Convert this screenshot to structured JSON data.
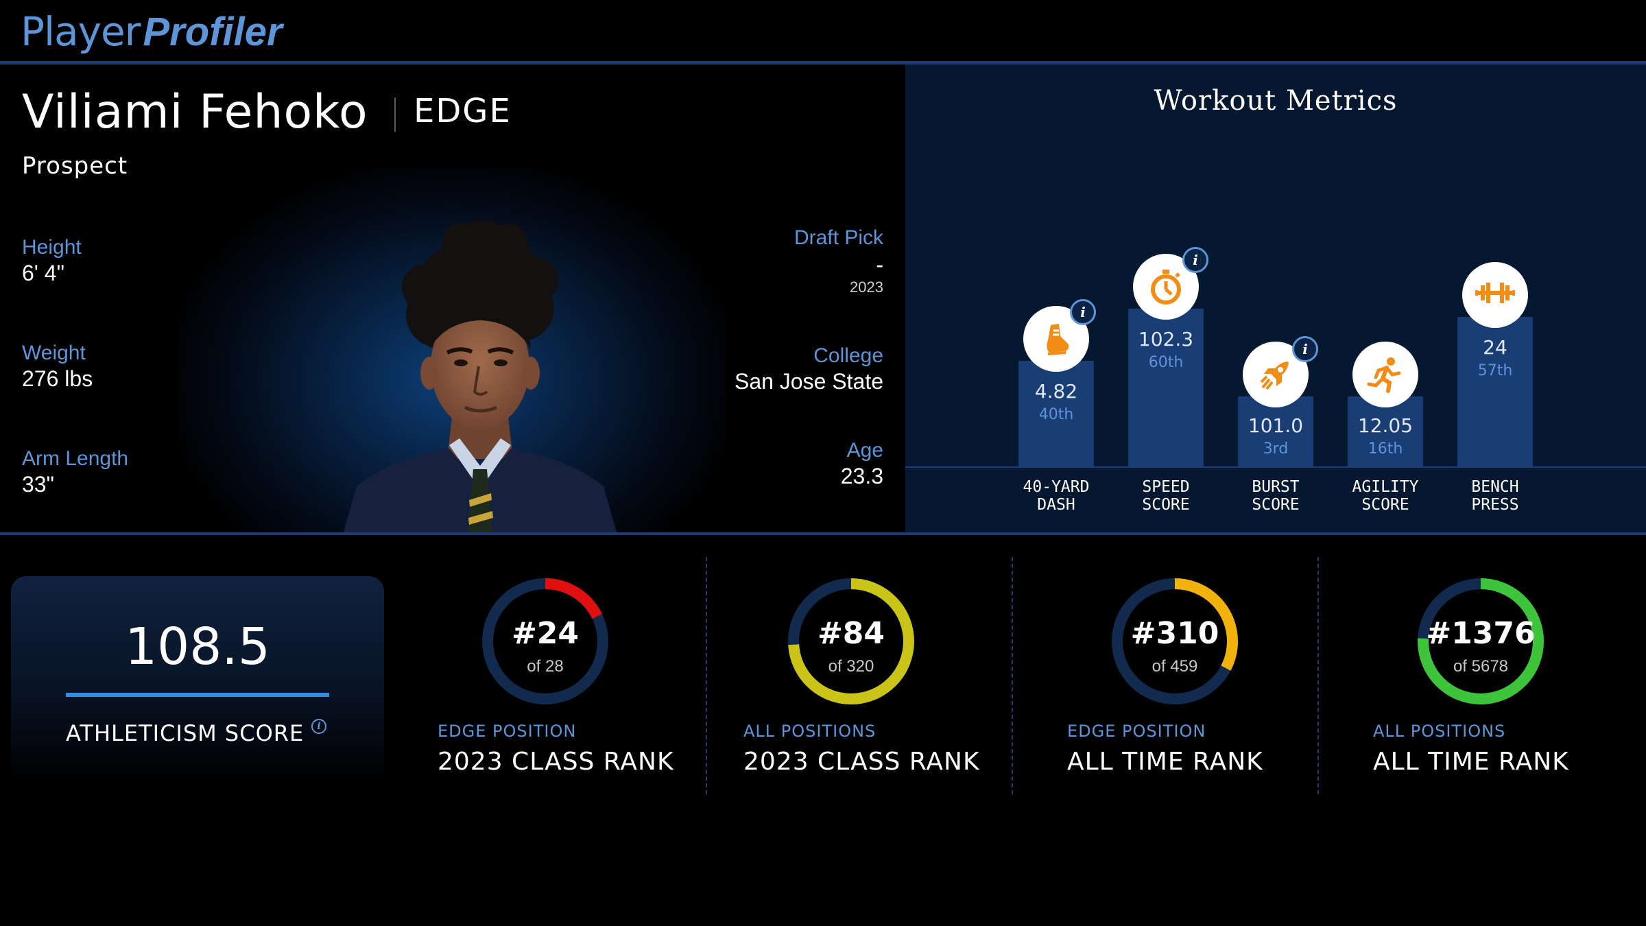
{
  "header": {
    "logo_part1": "Player",
    "logo_part2": "Profiler"
  },
  "player": {
    "name": "Viliami Fehoko",
    "position": "EDGE",
    "status": "Prospect",
    "left_stats": [
      {
        "label": "Height",
        "value": "6' 4\""
      },
      {
        "label": "Weight",
        "value": "276 lbs"
      },
      {
        "label": "Arm Length",
        "value": "33\""
      }
    ],
    "draft": {
      "label": "Draft Pick",
      "value": "-",
      "year": "2023"
    },
    "college": {
      "label": "College",
      "value": "San Jose State"
    },
    "age": {
      "label": "Age",
      "value": "23.3"
    }
  },
  "workout": {
    "title": "Workout Metrics",
    "metrics": [
      {
        "label_line1": "40-YARD",
        "label_line2": "DASH",
        "value": "4.82",
        "percentile": "40th",
        "percentile_num": 40,
        "icon": "shoe-icon",
        "has_info": true
      },
      {
        "label_line1": "SPEED",
        "label_line2": "SCORE",
        "value": "102.3",
        "percentile": "60th",
        "percentile_num": 60,
        "icon": "stopwatch-icon",
        "has_info": true
      },
      {
        "label_line1": "BURST",
        "label_line2": "SCORE",
        "value": "101.0",
        "percentile": "3rd",
        "percentile_num": 3,
        "icon": "rocket-icon",
        "has_info": true
      },
      {
        "label_line1": "AGILITY",
        "label_line2": "SCORE",
        "value": "12.05",
        "percentile": "16th",
        "percentile_num": 16,
        "icon": "runner-icon",
        "has_info": false
      },
      {
        "label_line1": "BENCH",
        "label_line2": "PRESS",
        "value": "24",
        "percentile": "57th",
        "percentile_num": 57,
        "icon": "barbell-icon",
        "has_info": false
      }
    ]
  },
  "athleticism": {
    "score": "108.5",
    "label": "ATHLETICISM SCORE"
  },
  "ranks": [
    {
      "number": "#24",
      "of": "of 28",
      "rank": 24,
      "total": 28,
      "color": "#e01010",
      "caption": "EDGE POSITION",
      "title": "2023 CLASS RANK"
    },
    {
      "number": "#84",
      "of": "of 320",
      "rank": 84,
      "total": 320,
      "color": "#c9c417",
      "caption": "ALL POSITIONS",
      "title": "2023 CLASS RANK"
    },
    {
      "number": "#310",
      "of": "of 459",
      "rank": 310,
      "total": 459,
      "color": "#f2b20c",
      "caption": "EDGE POSITION",
      "title": "ALL TIME RANK"
    },
    {
      "number": "#1376",
      "of": "of 5678",
      "rank": 1376,
      "total": 5678,
      "color": "#3ec43a",
      "caption": "ALL POSITIONS",
      "title": "ALL TIME RANK"
    }
  ],
  "colors": {
    "accent_blue": "#5d95d8",
    "bar_blue": "#1b3d75",
    "icon_orange": "#f28c17"
  }
}
